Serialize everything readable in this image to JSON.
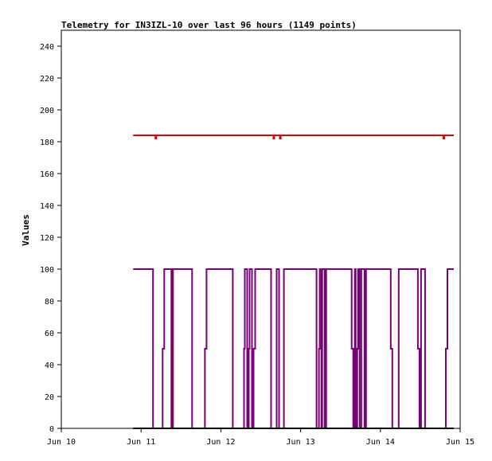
{
  "chart_data": {
    "type": "line",
    "title": "Telemetry for IN3IZL-10 over last 96 hours (1149 points)",
    "xlabel": "",
    "ylabel": "Values",
    "ylim": [
      0,
      250
    ],
    "xlim": [
      10,
      15
    ],
    "x_unit": "day of June",
    "yticks": [
      0,
      20,
      40,
      60,
      80,
      100,
      120,
      140,
      160,
      180,
      200,
      220,
      240
    ],
    "xticks": [
      {
        "x": 10,
        "label": "Jun 10"
      },
      {
        "x": 11,
        "label": "Jun 11"
      },
      {
        "x": 12,
        "label": "Jun 12"
      },
      {
        "x": 13,
        "label": "Jun 13"
      },
      {
        "x": 14,
        "label": "Jun 14"
      },
      {
        "x": 15,
        "label": "Jun 15"
      }
    ],
    "grid": false,
    "legend": "none",
    "series": [
      {
        "color": "#dd0000",
        "points": [
          [
            10.9,
            184
          ],
          [
            11.18,
            184
          ],
          [
            11.18,
            182
          ],
          [
            11.19,
            182
          ],
          [
            11.19,
            184
          ],
          [
            12.66,
            184
          ],
          [
            12.66,
            182
          ],
          [
            12.67,
            182
          ],
          [
            12.67,
            184
          ],
          [
            12.74,
            184
          ],
          [
            12.74,
            182
          ],
          [
            12.75,
            182
          ],
          [
            12.75,
            184
          ],
          [
            14.79,
            184
          ],
          [
            14.79,
            182
          ],
          [
            14.8,
            182
          ],
          [
            14.8,
            184
          ],
          [
            14.92,
            184
          ]
        ]
      },
      {
        "color": "#770077",
        "points": [
          [
            10.9,
            100
          ],
          [
            11.15,
            100
          ],
          [
            11.15,
            0
          ],
          [
            11.27,
            0
          ],
          [
            11.27,
            50
          ],
          [
            11.29,
            50
          ],
          [
            11.29,
            100
          ],
          [
            11.38,
            100
          ],
          [
            11.38,
            0
          ],
          [
            11.4,
            0
          ],
          [
            11.4,
            100
          ],
          [
            11.64,
            100
          ],
          [
            11.64,
            0
          ],
          [
            11.8,
            0
          ],
          [
            11.8,
            50
          ],
          [
            11.82,
            50
          ],
          [
            11.82,
            100
          ],
          [
            12.15,
            100
          ],
          [
            12.15,
            0
          ],
          [
            12.29,
            0
          ],
          [
            12.29,
            50
          ],
          [
            12.3,
            50
          ],
          [
            12.3,
            100
          ],
          [
            12.33,
            100
          ],
          [
            12.33,
            0
          ],
          [
            12.35,
            0
          ],
          [
            12.35,
            50
          ],
          [
            12.36,
            50
          ],
          [
            12.36,
            100
          ],
          [
            12.39,
            100
          ],
          [
            12.39,
            0
          ],
          [
            12.41,
            0
          ],
          [
            12.41,
            50
          ],
          [
            12.43,
            50
          ],
          [
            12.43,
            100
          ],
          [
            12.63,
            100
          ],
          [
            12.63,
            0
          ],
          [
            12.7,
            0
          ],
          [
            12.7,
            100
          ],
          [
            12.73,
            100
          ],
          [
            12.73,
            0
          ],
          [
            12.79,
            0
          ],
          [
            12.79,
            100
          ],
          [
            13.2,
            100
          ],
          [
            13.2,
            0
          ],
          [
            13.23,
            0
          ],
          [
            13.23,
            50
          ],
          [
            13.24,
            50
          ],
          [
            13.24,
            100
          ],
          [
            13.26,
            100
          ],
          [
            13.26,
            0
          ],
          [
            13.27,
            0
          ],
          [
            13.27,
            100
          ],
          [
            13.3,
            100
          ],
          [
            13.3,
            0
          ],
          [
            13.32,
            0
          ],
          [
            13.32,
            100
          ],
          [
            13.64,
            100
          ],
          [
            13.64,
            50
          ],
          [
            13.66,
            50
          ],
          [
            13.66,
            0
          ],
          [
            13.68,
            0
          ],
          [
            13.68,
            100
          ],
          [
            13.69,
            100
          ],
          [
            13.69,
            0
          ],
          [
            13.71,
            0
          ],
          [
            13.71,
            50
          ],
          [
            13.72,
            50
          ],
          [
            13.72,
            100
          ],
          [
            13.74,
            100
          ],
          [
            13.74,
            0
          ],
          [
            13.76,
            0
          ],
          [
            13.76,
            100
          ],
          [
            13.8,
            100
          ],
          [
            13.8,
            0
          ],
          [
            13.82,
            0
          ],
          [
            13.82,
            100
          ],
          [
            14.13,
            100
          ],
          [
            14.13,
            50
          ],
          [
            14.15,
            50
          ],
          [
            14.15,
            0
          ],
          [
            14.23,
            0
          ],
          [
            14.23,
            100
          ],
          [
            14.47,
            100
          ],
          [
            14.47,
            50
          ],
          [
            14.49,
            50
          ],
          [
            14.49,
            0
          ],
          [
            14.51,
            0
          ],
          [
            14.51,
            100
          ],
          [
            14.56,
            100
          ],
          [
            14.56,
            0
          ],
          [
            14.82,
            0
          ],
          [
            14.82,
            50
          ],
          [
            14.84,
            50
          ],
          [
            14.84,
            100
          ],
          [
            14.92,
            100
          ]
        ]
      },
      {
        "color": "#000000",
        "points": [
          [
            10.9,
            0
          ],
          [
            14.92,
            0
          ]
        ]
      }
    ]
  }
}
